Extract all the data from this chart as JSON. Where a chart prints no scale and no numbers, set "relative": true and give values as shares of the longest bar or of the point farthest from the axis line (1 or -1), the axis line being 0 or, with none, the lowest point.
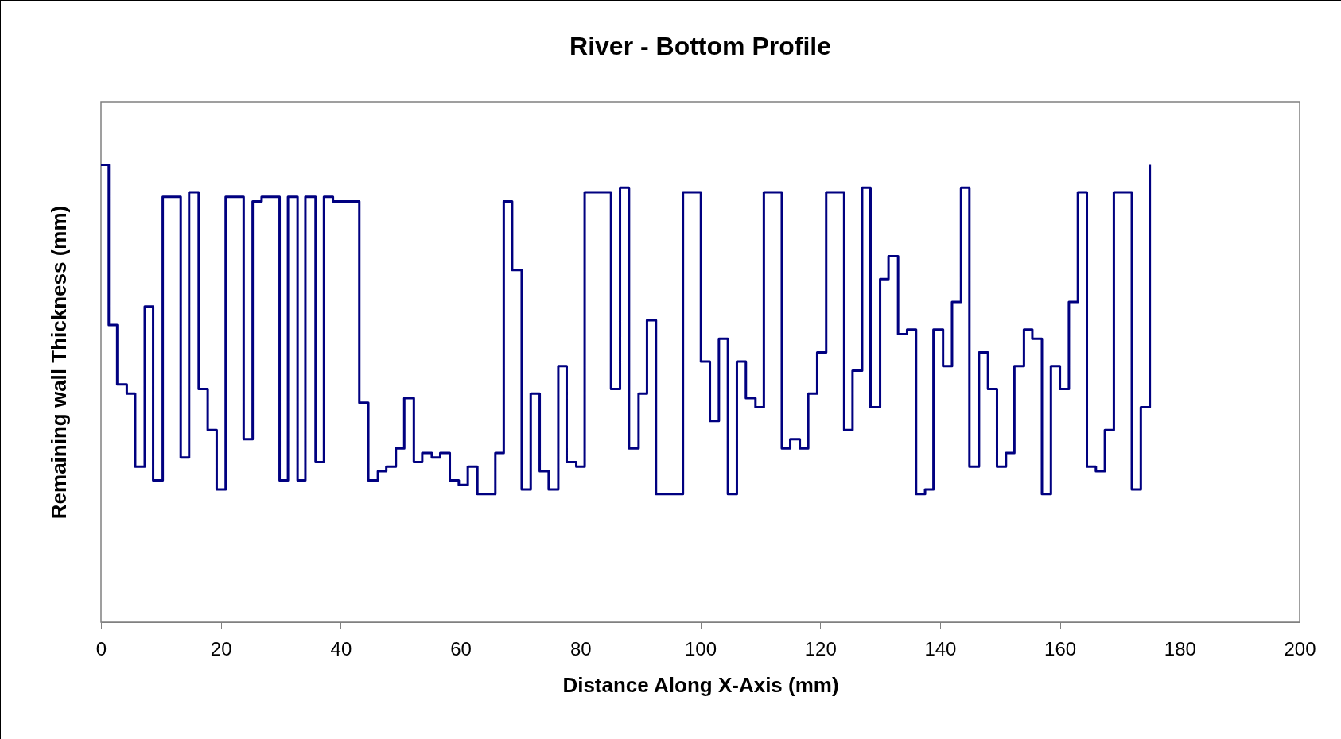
{
  "chart_data": {
    "type": "step",
    "title": "River - Bottom Profile",
    "xlabel": "Distance Along X-Axis (mm)",
    "ylabel": "Remaining wall Thickness (mm)",
    "relative": true,
    "xlim": [
      0,
      200
    ],
    "xticks": [
      0,
      20,
      40,
      60,
      80,
      100,
      120,
      140,
      160,
      180,
      200
    ],
    "grid": false,
    "marker": "none",
    "line_style": "solid",
    "series": [
      {
        "color": "#000080",
        "x": [
          0,
          1.3,
          2.7,
          4.3,
          5.7,
          7.3,
          8.7,
          10.3,
          13.3,
          14.7,
          16.3,
          17.8,
          19.3,
          20.8,
          23.8,
          25.3,
          26.8,
          29.8,
          31.2,
          32.8,
          34.1,
          35.8,
          37.2,
          38.7,
          43.1,
          44.6,
          46.2,
          47.6,
          49.2,
          50.6,
          52.2,
          53.6,
          55.2,
          56.6,
          58.2,
          59.7,
          61.2,
          62.8,
          65.8,
          67.2,
          68.6,
          70.2,
          71.7,
          73.2,
          74.7,
          76.3,
          77.7,
          79.3,
          80.7,
          85.1,
          86.6,
          88.1,
          89.7,
          91.1,
          92.6,
          94.1,
          97.1,
          100.1,
          101.6,
          103.1,
          104.6,
          106.1,
          107.6,
          109.2,
          110.6,
          113.6,
          115,
          116.6,
          118,
          119.5,
          121,
          124,
          125.4,
          127,
          128.4,
          130,
          131.4,
          133,
          134.5,
          136,
          137.5,
          138.9,
          140.5,
          142,
          143.5,
          144.9,
          146.5,
          148,
          149.5,
          151,
          152.4,
          154,
          155.4,
          157,
          158.5,
          160,
          161.5,
          163,
          164.5,
          166,
          167.5,
          169,
          172,
          173.5,
          175
        ],
        "values": [
          1.0,
          0.65,
          0.52,
          0.5,
          0.34,
          0.69,
          0.31,
          0.93,
          0.36,
          0.94,
          0.51,
          0.42,
          0.29,
          0.93,
          0.4,
          0.92,
          0.93,
          0.31,
          0.93,
          0.31,
          0.93,
          0.35,
          0.93,
          0.92,
          0.48,
          0.31,
          0.33,
          0.34,
          0.38,
          0.49,
          0.35,
          0.37,
          0.36,
          0.37,
          0.31,
          0.3,
          0.34,
          0.28,
          0.37,
          0.92,
          0.77,
          0.29,
          0.5,
          0.33,
          0.29,
          0.56,
          0.35,
          0.34,
          0.94,
          0.51,
          0.95,
          0.38,
          0.5,
          0.66,
          0.28,
          0.28,
          0.94,
          0.57,
          0.44,
          0.62,
          0.28,
          0.57,
          0.49,
          0.47,
          0.94,
          0.38,
          0.4,
          0.38,
          0.5,
          0.59,
          0.94,
          0.42,
          0.55,
          0.95,
          0.47,
          0.75,
          0.8,
          0.63,
          0.64,
          0.28,
          0.29,
          0.64,
          0.56,
          0.7,
          0.95,
          0.34,
          0.59,
          0.51,
          0.34,
          0.37,
          0.56,
          0.64,
          0.62,
          0.28,
          0.56,
          0.51,
          0.7,
          0.94,
          0.34,
          0.33,
          0.42,
          0.94,
          0.29,
          0.47,
          1.0
        ]
      }
    ]
  }
}
